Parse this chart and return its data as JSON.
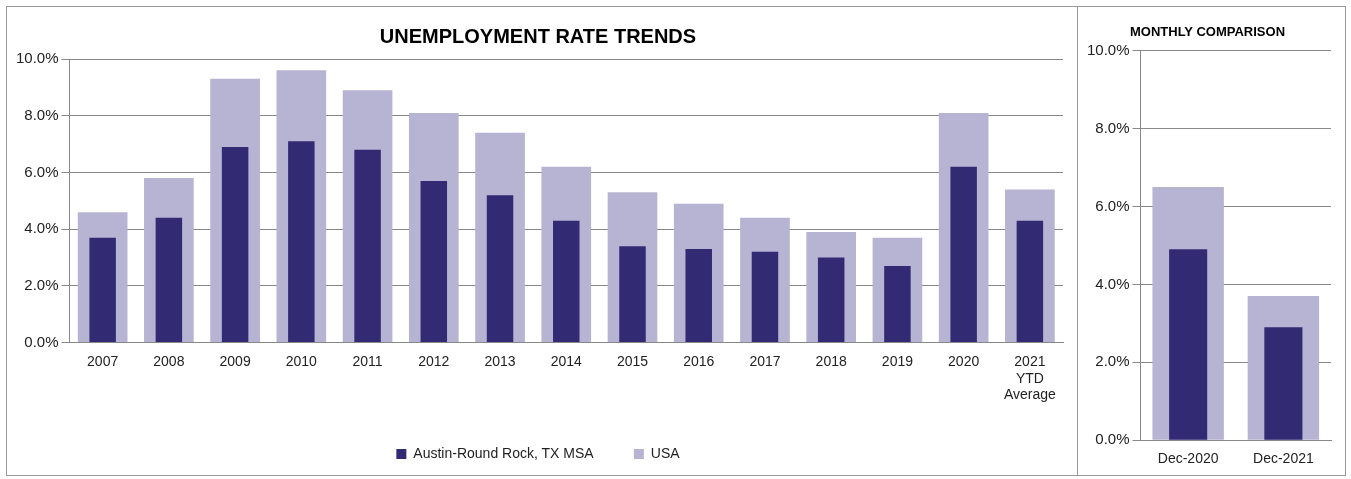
{
  "chart_data": [
    {
      "type": "bar",
      "title": "UNEMPLOYMENT RATE TRENDS",
      "categories": [
        "2007",
        "2008",
        "2009",
        "2010",
        "2011",
        "2012",
        "2013",
        "2014",
        "2015",
        "2016",
        "2017",
        "2018",
        "2019",
        "2020",
        "2021 YTD Average"
      ],
      "series": [
        {
          "name": "USA",
          "color": "#b7b3d3",
          "values": [
            4.6,
            5.8,
            9.3,
            9.6,
            8.9,
            8.1,
            7.4,
            6.2,
            5.3,
            4.9,
            4.4,
            3.9,
            3.7,
            8.1,
            5.4
          ]
        },
        {
          "name": "Austin-Round Rock, TX MSA",
          "color": "#332a74",
          "values": [
            3.7,
            4.4,
            6.9,
            7.1,
            6.8,
            5.7,
            5.2,
            4.3,
            3.4,
            3.3,
            3.2,
            3.0,
            2.7,
            6.2,
            4.3
          ]
        }
      ],
      "ylim": [
        0,
        10
      ],
      "yticks": [
        {
          "value": 0,
          "label": "0.0%"
        },
        {
          "value": 2,
          "label": "2.0%"
        },
        {
          "value": 4,
          "label": "4.0%"
        },
        {
          "value": 6,
          "label": "6.0%"
        },
        {
          "value": 8,
          "label": "8.0%"
        },
        {
          "value": 10,
          "label": "10.0%"
        }
      ],
      "grid": "y",
      "legend": "bottom"
    },
    {
      "type": "bar",
      "title": "MONTHLY COMPARISON",
      "categories": [
        "Dec-2020",
        "Dec-2021"
      ],
      "series": [
        {
          "color": "#b7b3d3",
          "values": [
            6.5,
            3.7
          ]
        },
        {
          "color": "#332a74",
          "values": [
            4.9,
            2.9
          ]
        }
      ],
      "ylim": [
        0,
        10
      ],
      "yticks": [
        {
          "value": 0,
          "label": "0.0%"
        },
        {
          "value": 2,
          "label": "2.0%"
        },
        {
          "value": 4,
          "label": "4.0%"
        },
        {
          "value": 6,
          "label": "6.0%"
        },
        {
          "value": 8,
          "label": "8.0%"
        },
        {
          "value": 10,
          "label": "10.0%"
        }
      ],
      "grid": "y"
    }
  ]
}
